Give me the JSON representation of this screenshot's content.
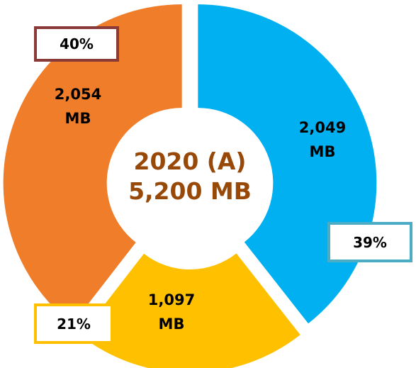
{
  "chart_data": {
    "type": "pie",
    "donut": true,
    "title": "2020 (A)",
    "total": 5200,
    "total_label": "5,200 MB",
    "categories": [
      null,
      null,
      null
    ],
    "values": [
      2049,
      1097,
      2054
    ],
    "value_labels": [
      "2,049\nMB",
      "1,097\nMB",
      "2,054\nMB"
    ],
    "percents": [
      39,
      21,
      40
    ],
    "percent_labels": [
      "39%",
      "21%",
      "40%"
    ],
    "colors": [
      "#00b0f0",
      "#ffc000",
      "#ef7d2a"
    ],
    "percent_box_borders": [
      "#4bacc6",
      "#ffc000",
      "#8b3a3a"
    ]
  }
}
